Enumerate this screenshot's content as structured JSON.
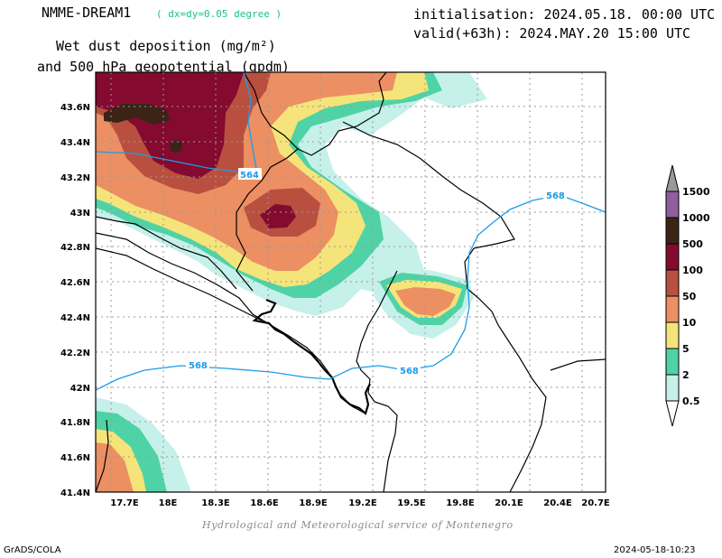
{
  "header": {
    "model": "NMME-DREAM1",
    "resolution": "( dx=dy=0.05 degree )",
    "field_line1": "Wet dust deposition (mg/m²)",
    "field_line2": "and 500 hPa geopotential (gpdm)",
    "init": "initialisation: 2024.05.18. 00:00 UTC",
    "valid": "valid(+63h): 2024.MAY.20 15:00 UTC"
  },
  "axes": {
    "lat_ticks": [
      "43.6N",
      "43.4N",
      "43.2N",
      "43N",
      "42.8N",
      "42.6N",
      "42.4N",
      "42.2N",
      "42N",
      "41.8N",
      "41.6N",
      "41.4N"
    ],
    "lon_ticks": [
      "17.7E",
      "18E",
      "18.3E",
      "18.6E",
      "18.9E",
      "19.2E",
      "19.5E",
      "19.8E",
      "20.1E",
      "20.4E",
      "20.7E"
    ]
  },
  "contours": {
    "labels": [
      "564",
      "568",
      "568",
      "568"
    ],
    "color": "#1e9be8"
  },
  "legend": {
    "levels": [
      "0.5",
      "2",
      "5",
      "10",
      "50",
      "100",
      "500",
      "1000",
      "1500"
    ],
    "colors": [
      "#c6f0ea",
      "#4fd3a6",
      "#f5e47a",
      "#ec8f63",
      "#b9503f",
      "#840a2f",
      "#3b2416",
      "#8e5f9c",
      "#999999"
    ]
  },
  "footer": {
    "credit": "Hydrological and Meteorological service of Montenegro",
    "software": "GrADS/COLA",
    "timestamp": "2024-05-18-10:23"
  }
}
